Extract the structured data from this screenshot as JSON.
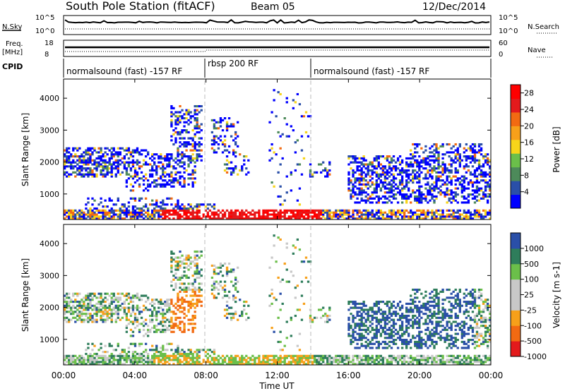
{
  "header": {
    "title": "South Pole Station (fitACF)",
    "beam": "Beam 05",
    "date": "12/Dec/2014"
  },
  "top_panels": {
    "nsky_label": "N.Sky",
    "nsearch_label": "N.Search",
    "freq_label_1": "Freq.",
    "freq_label_2": "[MHz]",
    "nave_label": "Nave",
    "cpid_label": "CPID",
    "noise_ticks_left": [
      "10^5",
      "10^0"
    ],
    "noise_ticks_right": [
      "10^5",
      "10^0"
    ],
    "freq_ticks": [
      "18",
      "8"
    ],
    "nave_ticks": [
      "60",
      "0"
    ]
  },
  "cpid_segments": [
    {
      "label": "normalsound (fast) -157 RF",
      "start_hour": 0,
      "end_hour": 8
    },
    {
      "label": "rbsp 200 RF",
      "start_hour": 8,
      "end_hour": 14
    },
    {
      "label": "normalsound (fast) -157 RF",
      "start_hour": 14,
      "end_hour": 24
    }
  ],
  "axes": {
    "ylabel": "Slant Range [km]",
    "xlabel": "Time UT",
    "xticks": [
      "00:00",
      "04:00",
      "08:00",
      "12:00",
      "16:00",
      "20:00",
      "00:00"
    ],
    "yticks": [
      "1000",
      "2000",
      "3000",
      "4000"
    ]
  },
  "colors": {
    "power": [
      "#0000ff",
      "#2a4fa8",
      "#4d8a5a",
      "#6bbf4a",
      "#f7d51a",
      "#f7a01a",
      "#f26a12",
      "#e31a1c",
      "#ff0000"
    ],
    "velocity": [
      "#e31a1c",
      "#f26a12",
      "#f7a01a",
      "#c8c8c8",
      "#c8c8c8",
      "#6bbf4a",
      "#2e7d5b",
      "#2a4fa8"
    ]
  },
  "chart_data": [
    {
      "type": "heatmap",
      "panel": "power",
      "xlabel": "Time UT",
      "ylabel": "Slant Range [km]",
      "xlim_hours": [
        0,
        24
      ],
      "ylim_km": [
        200,
        4600
      ],
      "colorbar_label": "Power [dB]",
      "colorbar_ticks": [
        "28",
        "24",
        "20",
        "16",
        "12",
        "8",
        "4"
      ],
      "colorbar_range": [
        0,
        30
      ]
    },
    {
      "type": "heatmap",
      "panel": "velocity",
      "xlabel": "Time UT",
      "ylabel": "Slant Range [km]",
      "xlim_hours": [
        0,
        24
      ],
      "ylim_km": [
        200,
        4600
      ],
      "colorbar_label": "Velocity [m s-1]",
      "colorbar_ticks": [
        "1000",
        "500",
        "100",
        "25",
        "-25",
        "-100",
        "-500",
        "-1000"
      ]
    }
  ]
}
